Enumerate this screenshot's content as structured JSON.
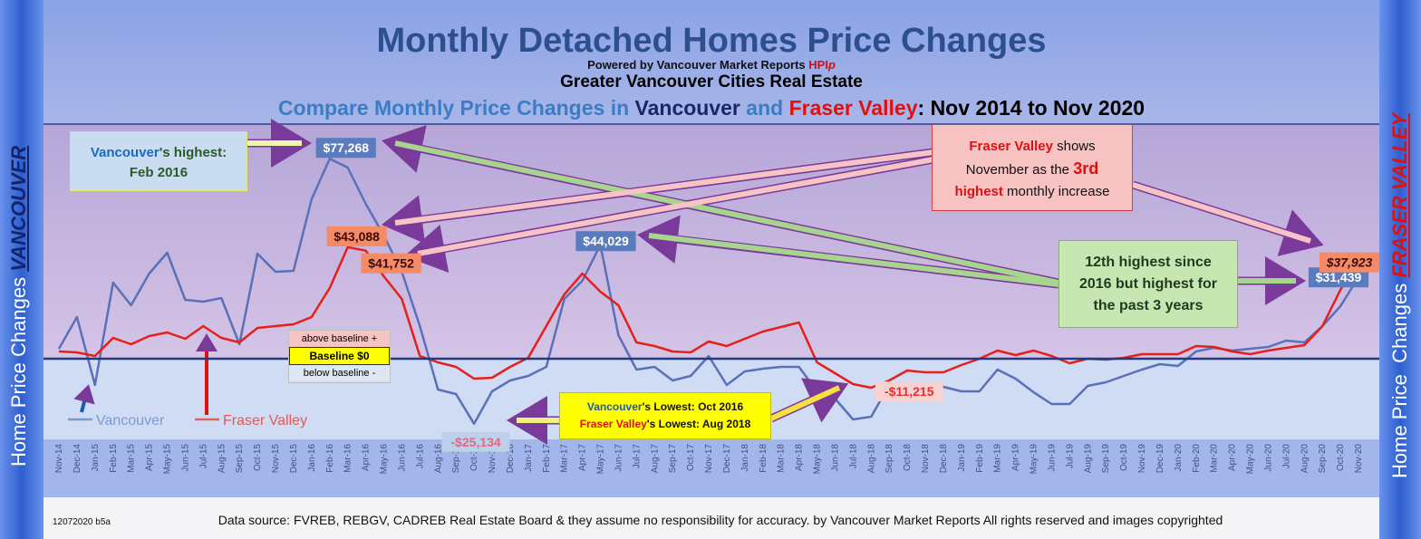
{
  "header": {
    "title": "Monthly Detached Homes Price Changes",
    "powered": [
      "Powered by Vancouver Market Reports ",
      "HPI",
      "p"
    ],
    "subtitle": "Greater Vancouver Cities Real Estate",
    "compare": [
      "Compare Monthly Price Changes in ",
      "Vancouver",
      " and ",
      "Fraser Valley",
      ": Nov 2014 to Nov 2020"
    ]
  },
  "side": {
    "left": [
      "Home Price Changes",
      "VANCOUVER"
    ],
    "right": [
      "Home Price  Changes",
      "FRASER VALLEY"
    ]
  },
  "chart_data": {
    "type": "line",
    "categories": [
      "Nov-14",
      "Dec-14",
      "Jan-15",
      "Feb-15",
      "Mar-15",
      "Apr-15",
      "May-15",
      "Jun-15",
      "Jul-15",
      "Aug-15",
      "Sep-15",
      "Oct-15",
      "Nov-15",
      "Dec-15",
      "Jan-16",
      "Feb-16",
      "Mar-16",
      "Apr-16",
      "May-16",
      "Jun-16",
      "Jul-16",
      "Aug-16",
      "Sep-16",
      "Oct-16",
      "Nov-16",
      "Dec-16",
      "Jan-17",
      "Feb-17",
      "Mar-17",
      "Apr-17",
      "May-17",
      "Jun-17",
      "Jul-17",
      "Aug-17",
      "Sep-17",
      "Oct-17",
      "Nov-17",
      "Dec-17",
      "Jan-18",
      "Feb-18",
      "Mar-18",
      "Apr-18",
      "May-18",
      "Jun-18",
      "Jul-18",
      "Aug-18",
      "Sep-18",
      "Oct-18",
      "Nov-18",
      "Dec-18",
      "Jan-19",
      "Feb-19",
      "Mar-19",
      "Apr-19",
      "May-19",
      "Jun-19",
      "Jul-19",
      "Aug-19",
      "Sep-19",
      "Oct-19",
      "Nov-19",
      "Dec-19",
      "Jan-20",
      "Feb-20",
      "Mar-20",
      "Apr-20",
      "May-20",
      "Jun-20",
      "Jul-20",
      "Aug-20",
      "Sep-20",
      "Oct-20",
      "Nov-20"
    ],
    "series": [
      {
        "name": "Vancouver",
        "color": "#5a70b8",
        "values": [
          3850,
          16100,
          -10150,
          29400,
          20650,
          32900,
          40950,
          22750,
          22050,
          23450,
          5600,
          40600,
          33600,
          33950,
          61600,
          77268,
          73850,
          59850,
          47600,
          33600,
          12600,
          -11900,
          -13650,
          -25134,
          -12600,
          -8400,
          -6650,
          -3150,
          23100,
          30100,
          44029,
          9100,
          -4200,
          -3150,
          -8400,
          -6650,
          1050,
          -10150,
          -4900,
          -3850,
          -3150,
          -3150,
          -12600,
          -15400,
          -23450,
          -22400,
          -10150,
          -10150,
          -10500,
          -10850,
          -12600,
          -12600,
          -4200,
          -7700,
          -12950,
          -17500,
          -17500,
          -10500,
          -9100,
          -6650,
          -4200,
          -2100,
          -2800,
          2800,
          4200,
          3150,
          3850,
          4550,
          7000,
          6300,
          12600,
          20300,
          31439
        ],
        "value_labels": [
          null,
          null,
          null,
          null,
          null,
          null,
          null,
          null,
          null,
          null,
          null,
          null,
          null,
          null,
          null,
          "$77,268",
          null,
          null,
          null,
          null,
          null,
          null,
          null,
          "-$25,134",
          null,
          null,
          null,
          null,
          null,
          null,
          "$44,029",
          null,
          null,
          null,
          null,
          null,
          null,
          null,
          null,
          null,
          null,
          null,
          null,
          null,
          null,
          null,
          null,
          null,
          null,
          null,
          null,
          null,
          null,
          null,
          null,
          null,
          null,
          null,
          null,
          null,
          null,
          null,
          null,
          null,
          null,
          null,
          null,
          null,
          null,
          null,
          null,
          null,
          "$31,439"
        ]
      },
      {
        "name": "Fraser Valley",
        "color": "#e81e1a",
        "values": [
          2800,
          2450,
          1050,
          8050,
          5600,
          8750,
          10150,
          7700,
          12600,
          8050,
          6300,
          11900,
          12600,
          13300,
          16100,
          27300,
          43088,
          41752,
          31850,
          23100,
          1050,
          -1400,
          -3150,
          -7700,
          -7350,
          -3150,
          350,
          12600,
          24850,
          32900,
          25900,
          20650,
          6300,
          4900,
          2800,
          2450,
          6650,
          4900,
          7700,
          10500,
          12250,
          14000,
          -1400,
          -5600,
          -9800,
          -11215,
          -8400,
          -4550,
          -5250,
          -5250,
          -2450,
          0,
          3150,
          1400,
          3150,
          1050,
          -1750,
          0,
          -350,
          350,
          1750,
          1750,
          1750,
          4900,
          4550,
          2800,
          1750,
          3150,
          4200,
          5250,
          12600,
          26600,
          37923
        ],
        "value_labels": [
          null,
          null,
          null,
          null,
          null,
          null,
          null,
          null,
          null,
          null,
          null,
          null,
          null,
          null,
          null,
          null,
          "$43,088",
          "$41,752",
          null,
          null,
          null,
          null,
          null,
          null,
          null,
          null,
          null,
          null,
          null,
          null,
          null,
          null,
          null,
          null,
          null,
          null,
          null,
          null,
          null,
          null,
          null,
          null,
          null,
          null,
          null,
          "-$11,215",
          null,
          null,
          null,
          null,
          null,
          null,
          null,
          null,
          null,
          null,
          null,
          null,
          null,
          null,
          null,
          null,
          null,
          null,
          null,
          null,
          null,
          null,
          null,
          null,
          null,
          null,
          "$37,923"
        ]
      }
    ],
    "ylim": [
      -31150,
      90300
    ],
    "baseline": 0,
    "baseline_box": [
      "above baseline +",
      "Baseline $0",
      "below baseline -"
    ]
  },
  "annotations": {
    "van_high": [
      "Vancouver",
      "'s highest:",
      "Feb 2016"
    ],
    "fv_nov": [
      "Fraser Valley",
      " shows",
      "November as the ",
      "3rd",
      "highest",
      " monthly increase"
    ],
    "twelfth": [
      "12th highest since",
      "2016 but highest for",
      "the past 3 years"
    ],
    "lowest": [
      "Vancouver",
      "'s Lowest: Oct 2016",
      "Fraser Valley",
      "'s Lowest: Aug 2018"
    ]
  },
  "footer": {
    "code": "12072020 b5a",
    "source": "Data source: FVREB, REBGV, CADREB Real Estate Board & they assume no responsibility for accuracy. by Vancouver Market Reports All rights reserved and  images copyrighted"
  }
}
